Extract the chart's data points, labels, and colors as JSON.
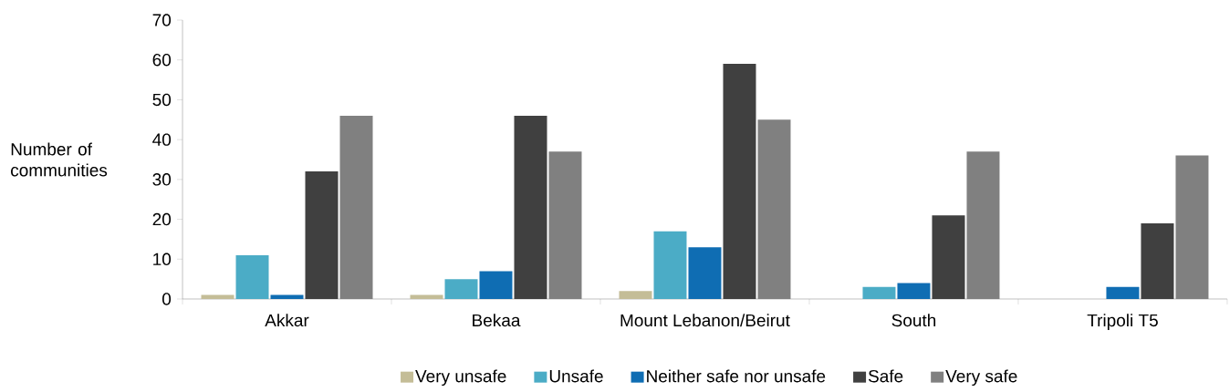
{
  "chart_data": {
    "type": "bar",
    "ylabel": "Number of communities",
    "categories": [
      "Akkar",
      "Bekaa",
      "Mount Lebanon/Beirut",
      "South",
      "Tripoli T5"
    ],
    "series": [
      {
        "name": "Very unsafe",
        "color": "#c4bd97",
        "values": [
          1,
          1,
          2,
          0,
          0
        ]
      },
      {
        "name": "Unsafe",
        "color": "#4bacc6",
        "values": [
          11,
          5,
          17,
          3,
          0
        ]
      },
      {
        "name": "Neither safe nor unsafe",
        "color": "#0f6db3",
        "values": [
          1,
          7,
          13,
          4,
          3
        ]
      },
      {
        "name": "Safe",
        "color": "#404040",
        "values": [
          32,
          46,
          59,
          21,
          19
        ]
      },
      {
        "name": "Very safe",
        "color": "#808080",
        "values": [
          46,
          37,
          45,
          37,
          36
        ]
      }
    ],
    "ylim": [
      0,
      70
    ],
    "yticks": [
      0,
      10,
      20,
      30,
      40,
      50,
      60,
      70
    ],
    "legend": "bottom"
  }
}
